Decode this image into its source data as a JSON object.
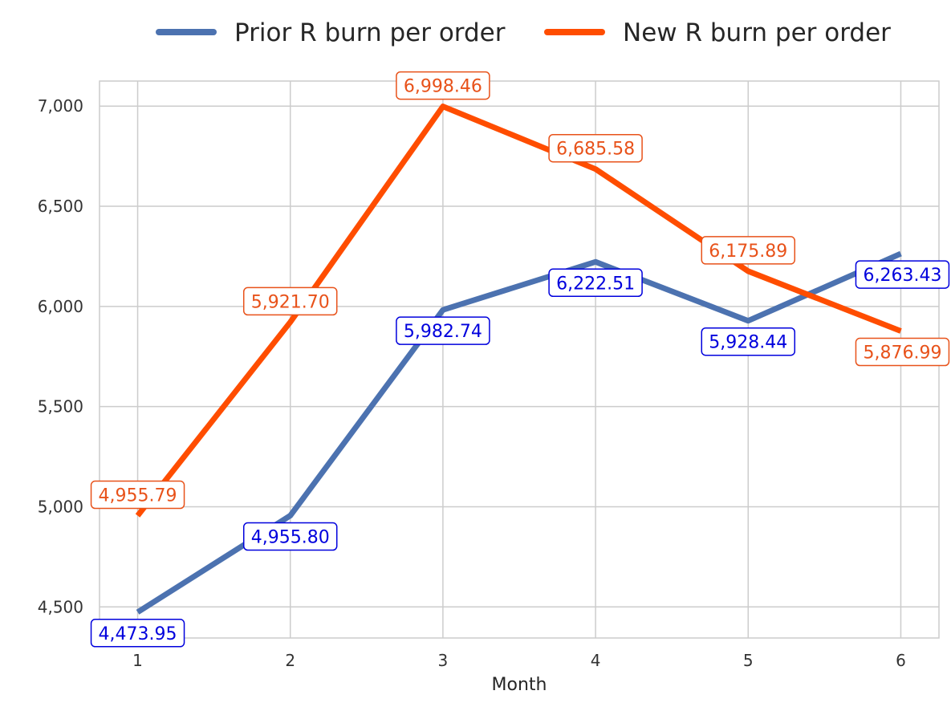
{
  "chart_data": {
    "type": "line",
    "title": "",
    "xlabel": "Month",
    "ylabel": "",
    "x": [
      1,
      2,
      3,
      4,
      5,
      6
    ],
    "xticks": [
      "1",
      "2",
      "3",
      "4",
      "5",
      "6"
    ],
    "yticks": [
      "4,500",
      "5,000",
      "5,500",
      "6,000",
      "6,500",
      "7,000"
    ],
    "ytick_values": [
      4500,
      5000,
      5500,
      6000,
      6500,
      7000
    ],
    "xlim": [
      0.75,
      6.25
    ],
    "ylim": [
      4345,
      7125
    ],
    "grid": true,
    "legend_position": "top-center",
    "series": [
      {
        "name": "Prior R burn per order",
        "color": "#4C72B0",
        "label_color": "#0000DD",
        "label_placement": [
          "below",
          "below",
          "below",
          "below",
          "below",
          "right"
        ],
        "values": [
          4473.95,
          4955.8,
          5982.74,
          6222.51,
          5928.44,
          6263.43
        ],
        "labels": [
          "4,473.95",
          "4,955.80",
          "5,982.74",
          "6,222.51",
          "5,928.44",
          "6,263.43"
        ]
      },
      {
        "name": "New R burn per order",
        "color": "#FF4D00",
        "label_color": "#E8521A",
        "label_placement": [
          "above",
          "above",
          "above",
          "above",
          "above",
          "right"
        ],
        "values": [
          4955.79,
          5921.7,
          6998.46,
          6685.58,
          6175.89,
          5876.99
        ],
        "labels": [
          "4,955.79",
          "5,921.70",
          "6,998.46",
          "6,685.58",
          "6,175.89",
          "5,876.99"
        ]
      }
    ]
  }
}
